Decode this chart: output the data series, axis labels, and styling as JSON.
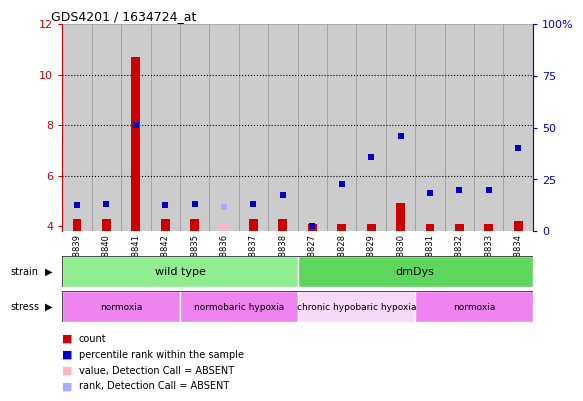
{
  "title": "GDS4201 / 1634724_at",
  "samples": [
    "GSM398839",
    "GSM398840",
    "GSM398841",
    "GSM398842",
    "GSM398835",
    "GSM398836",
    "GSM398837",
    "GSM398838",
    "GSM398827",
    "GSM398828",
    "GSM398829",
    "GSM398830",
    "GSM398831",
    "GSM398832",
    "GSM398833",
    "GSM398834"
  ],
  "count_values": [
    4.3,
    4.3,
    10.7,
    4.3,
    4.3,
    4.1,
    4.3,
    4.3,
    4.1,
    4.1,
    4.1,
    4.9,
    4.1,
    4.1,
    4.1,
    4.2
  ],
  "count_absent": [
    false,
    false,
    false,
    false,
    false,
    true,
    false,
    false,
    false,
    false,
    false,
    false,
    false,
    false,
    false,
    false
  ],
  "rank_pct": [
    12.5,
    13.0,
    51.5,
    12.5,
    13.0,
    11.5,
    13.0,
    17.5,
    2.5,
    23.0,
    36.0,
    46.0,
    18.5,
    20.0,
    20.0,
    40.0
  ],
  "rank_absent": [
    false,
    false,
    false,
    false,
    false,
    true,
    false,
    false,
    false,
    false,
    false,
    false,
    false,
    false,
    false,
    false
  ],
  "ylim_left": [
    3.8,
    12
  ],
  "ylim_right": [
    0,
    100
  ],
  "yticks_left": [
    4,
    6,
    8,
    10,
    12
  ],
  "yticks_right": [
    0,
    25,
    50,
    75,
    100
  ],
  "strain_groups": [
    {
      "label": "wild type",
      "start": 0,
      "end": 8,
      "color": "#90ee90"
    },
    {
      "label": "dmDys",
      "start": 8,
      "end": 16,
      "color": "#5cd65c"
    }
  ],
  "stress_groups": [
    {
      "label": "normoxia",
      "start": 0,
      "end": 4,
      "color": "#ee82ee"
    },
    {
      "label": "normobaric hypoxia",
      "start": 4,
      "end": 8,
      "color": "#ee82ee"
    },
    {
      "label": "chronic hypobaric hypoxia",
      "start": 8,
      "end": 12,
      "color": "#f8d8f8"
    },
    {
      "label": "normoxia",
      "start": 12,
      "end": 16,
      "color": "#ee82ee"
    }
  ],
  "bar_color_present": "#cc0000",
  "bar_color_absent": "#ffb6c1",
  "rank_color_present": "#0000cc",
  "rank_color_absent": "#aaaaff",
  "bg_color": "#cccccc",
  "col_edge_color": "#999999",
  "left_axis_color": "#cc0000",
  "right_axis_color": "#0000cc",
  "legend": [
    {
      "label": "count",
      "color": "#cc0000"
    },
    {
      "label": "percentile rank within the sample",
      "color": "#0000cc"
    },
    {
      "label": "value, Detection Call = ABSENT",
      "color": "#ffb6c1"
    },
    {
      "label": "rank, Detection Call = ABSENT",
      "color": "#aaaaff"
    }
  ]
}
